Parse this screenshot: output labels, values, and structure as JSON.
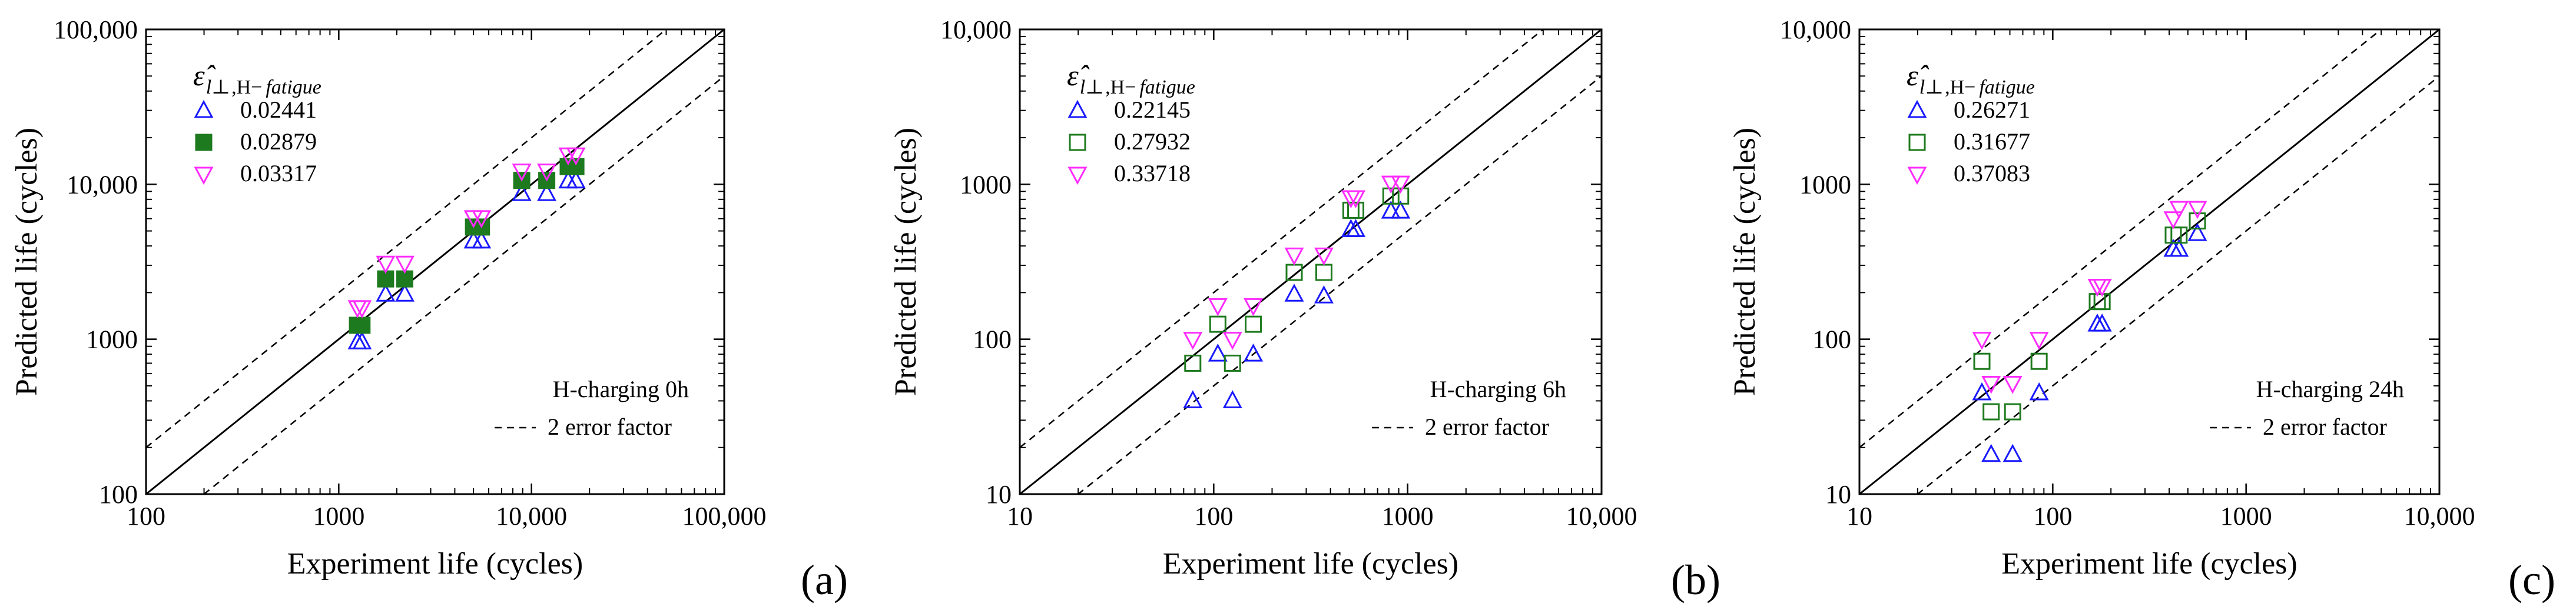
{
  "figure": {
    "colors": {
      "blue": "#1a1aff",
      "green": "#1e7a1e",
      "magenta": "#ff2bff",
      "black": "#000000"
    }
  },
  "chart_data": [
    {
      "type": "scatter",
      "panel_label": "(a)",
      "xlabel": "Experiment life (cycles)",
      "ylabel": "Predicted life (cycles)",
      "xscale": "log",
      "yscale": "log",
      "xlim": [
        100,
        100000
      ],
      "ylim": [
        100,
        100000
      ],
      "ticks": [
        100,
        1000,
        10000,
        100000
      ],
      "tick_labels": [
        "100",
        "1000",
        "10,000",
        "100,000"
      ],
      "legend_title": {
        "symbol": "ε̂",
        "sub": "l⊥",
        "sub2": "H−",
        "sub3": "fatigue"
      },
      "legend_placement": "top-left",
      "annotation": "H-charging 0h",
      "line_legend": "2 error factor",
      "series": [
        {
          "name": "0.02441",
          "marker": "triangle-up",
          "filled": false,
          "color": "#1a1aff",
          "x": [
            1250,
            1320,
            1750,
            2200,
            5000,
            5500,
            8900,
            12000,
            15500,
            17000
          ],
          "y": [
            960,
            960,
            1950,
            1950,
            4300,
            4300,
            8700,
            8700,
            10500,
            10500
          ]
        },
        {
          "name": "0.02879",
          "marker": "square",
          "filled": true,
          "color": "#1e7a1e",
          "x": [
            1250,
            1320,
            1750,
            2200,
            5000,
            5500,
            8900,
            12000,
            15500,
            17000
          ],
          "y": [
            1230,
            1230,
            2450,
            2450,
            5300,
            5300,
            10600,
            10600,
            13000,
            13000
          ]
        },
        {
          "name": "0.03317",
          "marker": "triangle-down",
          "filled": false,
          "color": "#ff2bff",
          "x": [
            1250,
            1320,
            1750,
            2200,
            5000,
            5500,
            8900,
            12000,
            15500,
            17000
          ],
          "y": [
            1600,
            1600,
            3100,
            3100,
            6100,
            6100,
            12200,
            12200,
            15500,
            15500
          ]
        }
      ]
    },
    {
      "type": "scatter",
      "panel_label": "(b)",
      "xlabel": "Experiment life (cycles)",
      "ylabel": "Predicted life (cycles)",
      "xscale": "log",
      "yscale": "log",
      "xlim": [
        10,
        10000
      ],
      "ylim": [
        10,
        10000
      ],
      "ticks": [
        10,
        100,
        1000,
        10000
      ],
      "tick_labels": [
        "10",
        "100",
        "1000",
        "10,000"
      ],
      "legend_title": {
        "symbol": "ε̂",
        "sub": "l⊥",
        "sub2": "H−",
        "sub3": "fatigue"
      },
      "legend_placement": "top-left",
      "annotation": "H-charging 6h",
      "line_legend": "2 error factor",
      "series": [
        {
          "name": "0.22145",
          "marker": "triangle-up",
          "filled": false,
          "color": "#1a1aff",
          "x": [
            78,
            105,
            125,
            160,
            260,
            370,
            510,
            540,
            820,
            920
          ],
          "y": [
            40,
            80,
            40,
            80,
            195,
            190,
            510,
            510,
            670,
            670
          ]
        },
        {
          "name": "0.27932",
          "marker": "square",
          "filled": false,
          "color": "#1e7a1e",
          "x": [
            78,
            105,
            125,
            160,
            260,
            370,
            510,
            540,
            820,
            920
          ],
          "y": [
            70,
            125,
            70,
            125,
            270,
            270,
            680,
            680,
            840,
            840
          ]
        },
        {
          "name": "0.33718",
          "marker": "triangle-down",
          "filled": false,
          "color": "#ff2bff",
          "x": [
            78,
            105,
            125,
            160,
            260,
            370,
            510,
            540,
            820,
            920
          ],
          "y": [
            100,
            165,
            100,
            165,
            350,
            350,
            820,
            820,
            1020,
            1020
          ]
        }
      ]
    },
    {
      "type": "scatter",
      "panel_label": "(c)",
      "xlabel": "Experiment life (cycles)",
      "ylabel": "Predicted life (cycles)",
      "xscale": "log",
      "yscale": "log",
      "xlim": [
        10,
        10000
      ],
      "ylim": [
        10,
        10000
      ],
      "ticks": [
        10,
        100,
        1000,
        10000
      ],
      "tick_labels": [
        "10",
        "100",
        "1000",
        "10,000"
      ],
      "legend_title": {
        "symbol": "ε̂",
        "sub": "l⊥",
        "sub2": "H−",
        "sub3": "fatigue"
      },
      "legend_placement": "top-left",
      "annotation": "H-charging 24h",
      "line_legend": "2 error factor",
      "series": [
        {
          "name": "0.26271",
          "marker": "triangle-up",
          "filled": false,
          "color": "#1a1aff",
          "x": [
            43,
            48,
            62,
            85,
            170,
            180,
            420,
            450,
            560
          ],
          "y": [
            45,
            18,
            18,
            45,
            125,
            125,
            380,
            380,
            480
          ]
        },
        {
          "name": "0.31677",
          "marker": "square",
          "filled": false,
          "color": "#1e7a1e",
          "x": [
            43,
            48,
            62,
            85,
            170,
            180,
            420,
            450,
            560
          ],
          "y": [
            72,
            34,
            34,
            72,
            175,
            175,
            470,
            470,
            580
          ]
        },
        {
          "name": "0.37083",
          "marker": "triangle-down",
          "filled": false,
          "color": "#ff2bff",
          "x": [
            43,
            48,
            62,
            85,
            170,
            180,
            420,
            450,
            560
          ],
          "y": [
            100,
            52,
            52,
            100,
            220,
            220,
            600,
            700,
            700
          ]
        }
      ]
    }
  ]
}
